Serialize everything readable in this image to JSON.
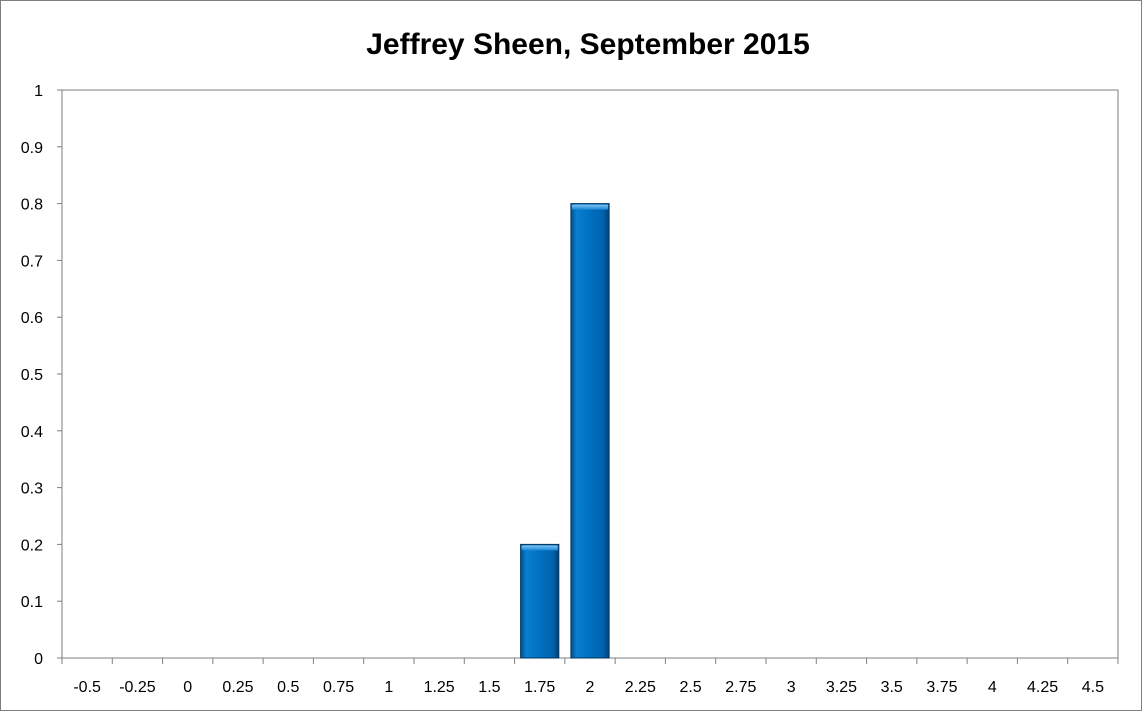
{
  "chart_data": {
    "type": "bar",
    "title": "Jeffrey Sheen, September 2015",
    "xlabel": "",
    "ylabel": "",
    "categories": [
      "-0.5",
      "-0.25",
      "0",
      "0.25",
      "0.5",
      "0.75",
      "1",
      "1.25",
      "1.5",
      "1.75",
      "2",
      "2.25",
      "2.5",
      "2.75",
      "3",
      "3.25",
      "3.5",
      "3.75",
      "4",
      "4.25",
      "4.5"
    ],
    "values": [
      0,
      0,
      0,
      0,
      0,
      0,
      0,
      0,
      0,
      0.2,
      0.8,
      0,
      0,
      0,
      0,
      0,
      0,
      0,
      0,
      0,
      0
    ],
    "ylim": [
      0,
      1
    ],
    "yticks": [
      "0",
      "0.1",
      "0.2",
      "0.3",
      "0.4",
      "0.5",
      "0.6",
      "0.7",
      "0.8",
      "0.9",
      "1"
    ],
    "grid": false,
    "legend": "none",
    "bar_color": "#0070c0"
  }
}
